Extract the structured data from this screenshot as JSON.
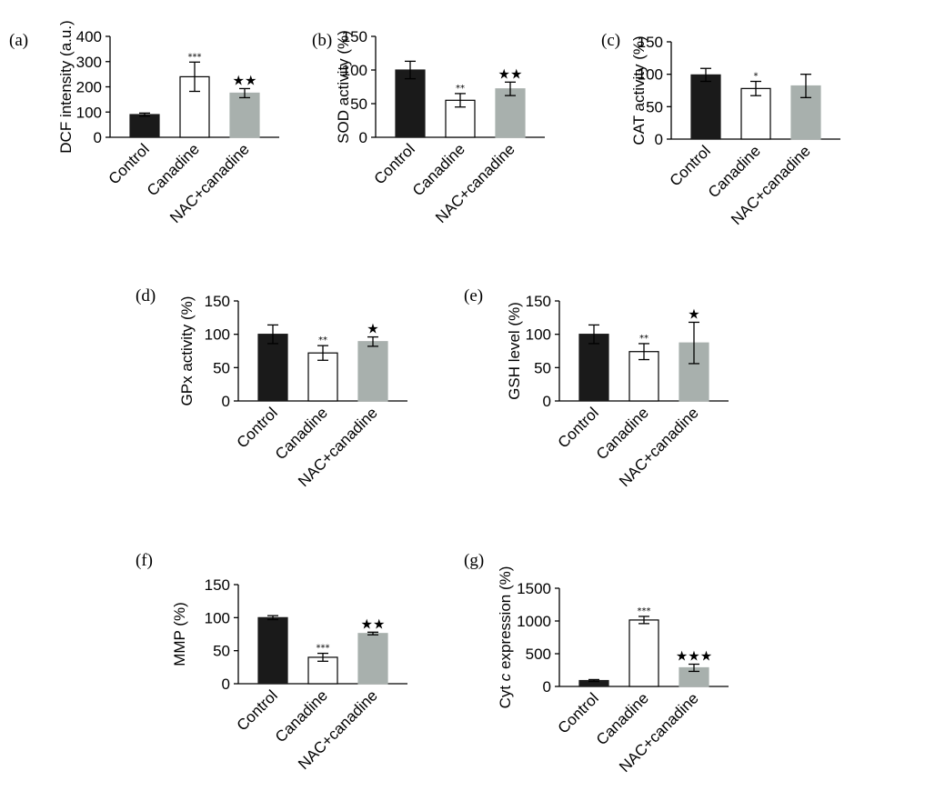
{
  "figure": {
    "colors": {
      "Control": "#1a1a1a",
      "Canadine": "#ffffff",
      "NAC+canadine": "#a8b0ad"
    }
  },
  "chart_data": [
    {
      "panel": "(a)",
      "type": "bar",
      "categories": [
        "Control",
        "Canadine",
        "NAC+canadine"
      ],
      "values": [
        90,
        240,
        175
      ],
      "errors": [
        6,
        58,
        18
      ],
      "significance": [
        "",
        "***",
        "★★"
      ],
      "ylabel": "DCF intensity (a.u.)",
      "ylim": [
        0,
        400
      ],
      "yticks": [
        0,
        100,
        200,
        300,
        400
      ]
    },
    {
      "panel": "(b)",
      "type": "bar",
      "categories": [
        "Control",
        "Canadine",
        "NAC+canadine"
      ],
      "values": [
        100,
        55,
        72
      ],
      "errors": [
        13,
        10,
        10
      ],
      "significance": [
        "",
        "**",
        "★★"
      ],
      "ylabel": "SOD activity (%)",
      "ylim": [
        0,
        150
      ],
      "yticks": [
        0,
        50,
        100,
        150
      ]
    },
    {
      "panel": "(c)",
      "type": "bar",
      "categories": [
        "Control",
        "Canadine",
        "NAC+canadine"
      ],
      "values": [
        99,
        78,
        82
      ],
      "errors": [
        10,
        11,
        18
      ],
      "significance": [
        "",
        "*",
        ""
      ],
      "ylabel": "CAT activity (%)",
      "ylim": [
        0,
        150
      ],
      "yticks": [
        0,
        50,
        100,
        150
      ]
    },
    {
      "panel": "(d)",
      "type": "bar",
      "categories": [
        "Control",
        "Canadine",
        "NAC+canadine"
      ],
      "values": [
        100,
        72,
        89
      ],
      "errors": [
        14,
        11,
        7
      ],
      "significance": [
        "",
        "**",
        "★"
      ],
      "ylabel": "GPx activity (%)",
      "ylim": [
        0,
        150
      ],
      "yticks": [
        0,
        50,
        100,
        150
      ]
    },
    {
      "panel": "(e)",
      "type": "bar",
      "categories": [
        "Control",
        "Canadine",
        "NAC+canadine"
      ],
      "values": [
        100,
        74,
        87
      ],
      "errors": [
        14,
        12,
        31
      ],
      "significance": [
        "",
        "**",
        "★"
      ],
      "ylabel": "GSH level (%)",
      "ylim": [
        0,
        150
      ],
      "yticks": [
        0,
        50,
        100,
        150
      ]
    },
    {
      "panel": "(f)",
      "type": "bar",
      "categories": [
        "Control",
        "Canadine",
        "NAC+canadine"
      ],
      "values": [
        100,
        40,
        76
      ],
      "errors": [
        3,
        6,
        2
      ],
      "significance": [
        "",
        "***",
        "★★"
      ],
      "ylabel": "MMP (%)",
      "ylim": [
        0,
        150
      ],
      "yticks": [
        0,
        50,
        100,
        150
      ]
    },
    {
      "panel": "(g)",
      "type": "bar",
      "categories": [
        "Control",
        "Canadine",
        "NAC+canadine"
      ],
      "values": [
        90,
        1015,
        285
      ],
      "errors": [
        15,
        55,
        55
      ],
      "significance": [
        "",
        "***",
        "★★★"
      ],
      "ylabel_parts": [
        "Cyt ",
        "c",
        " expression (%)"
      ],
      "ylim": [
        0,
        1500
      ],
      "yticks": [
        0,
        500,
        1000,
        1500
      ]
    }
  ]
}
